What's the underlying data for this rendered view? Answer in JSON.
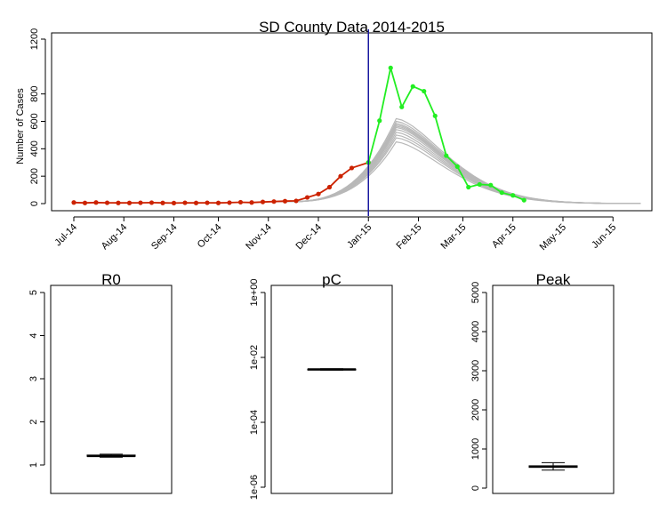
{
  "colors": {
    "observed_fit": "#cc2200",
    "observed_later": "#22ee22",
    "simulations": "#b8b8b8",
    "vertical_line": "#1a1aa0",
    "box": "#000000"
  },
  "chart_data": [
    {
      "type": "line",
      "title": "SD County Data 2014-2015",
      "xlabel": "",
      "ylabel": "Number of Cases",
      "xlim_weeks": [
        -2,
        52
      ],
      "ylim": [
        0,
        1200
      ],
      "yticks": [
        0,
        200,
        400,
        600,
        800,
        1200
      ],
      "xtick_weeks": [
        0,
        4.5,
        9,
        13,
        17.5,
        22,
        26.5,
        31,
        35,
        39.5,
        44,
        48.5
      ],
      "xtick_labels": [
        "Jul-14",
        "Aug-14",
        "Sep-14",
        "Oct-14",
        "Nov-14",
        "Dec-14",
        "Jan-15",
        "Feb-15",
        "Mar-15",
        "Apr-15",
        "May-15",
        "Jun-15"
      ],
      "vertical_line_week": 26.5,
      "series": [
        {
          "key": "observed_fit",
          "weeks": [
            0,
            1,
            2,
            3,
            4,
            5,
            6,
            7,
            8,
            9,
            10,
            11,
            12,
            13,
            14,
            15,
            16,
            17,
            18,
            19,
            20,
            21,
            22,
            23,
            24,
            25,
            26.5
          ],
          "values": [
            8,
            5,
            8,
            6,
            5,
            5,
            6,
            7,
            5,
            4,
            6,
            5,
            6,
            5,
            7,
            10,
            8,
            12,
            15,
            18,
            20,
            45,
            70,
            120,
            200,
            260,
            300
          ]
        },
        {
          "key": "observed_later",
          "weeks": [
            26.5,
            27.5,
            28.5,
            29.5,
            30.5,
            31.5,
            32.5,
            33.5,
            34.5,
            35.5,
            36.5,
            37.5,
            38.5,
            39.5,
            40.5
          ],
          "values": [
            300,
            605,
            990,
            705,
            855,
            820,
            640,
            350,
            270,
            120,
            140,
            135,
            80,
            60,
            25
          ]
        }
      ],
      "simulation_peaks": [
        450,
        480,
        500,
        520,
        540,
        555,
        565,
        575,
        585,
        600,
        620
      ],
      "simulation_peak_week": 29,
      "simulation_start_week": 18
    },
    {
      "type": "box",
      "title": "R0",
      "ylim": [
        0.2,
        5.2
      ],
      "yticks": [
        1,
        2,
        3,
        4,
        5
      ],
      "yticklabels": [
        "1",
        "2",
        "3",
        "4",
        "5"
      ],
      "box": {
        "min": 1.18,
        "q1": 1.2,
        "median": 1.21,
        "q3": 1.23,
        "max": 1.25
      }
    },
    {
      "type": "box",
      "title": "pC",
      "log_scale": true,
      "ylim_log10": [
        -6.1,
        0.3
      ],
      "yticks_log10": [
        -6,
        -4,
        -2,
        0
      ],
      "yticklabels": [
        "1e-06",
        "1e-04",
        "1e-02",
        "1e+00"
      ],
      "box": {
        "min_log10": -2.39,
        "q1_log10": -2.38,
        "median_log10": -2.37,
        "q3_log10": -2.36,
        "max_log10": -2.35
      }
    },
    {
      "type": "box",
      "title": "Peak",
      "ylim": [
        -200,
        5200
      ],
      "yticks": [
        0,
        1000,
        2000,
        3000,
        4000,
        5000
      ],
      "yticklabels": [
        "0",
        "1000",
        "2000",
        "3000",
        "4000",
        "5000"
      ],
      "box": {
        "min": 460,
        "q1": 530,
        "median": 550,
        "q3": 570,
        "max": 650
      }
    }
  ]
}
